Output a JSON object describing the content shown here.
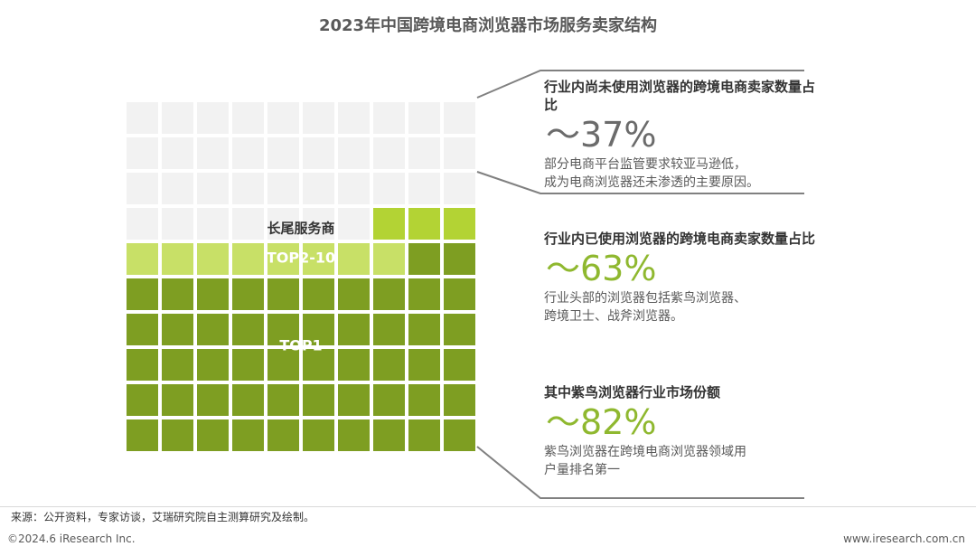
{
  "chart_data": {
    "type": "waffle",
    "title": "2023年中国跨境电商浏览器市场服务卖家结构",
    "grid": {
      "rows": 10,
      "cols": 10
    },
    "segments": [
      {
        "name": "未使用浏览器",
        "cells": 37,
        "color": "#f2f2f2"
      },
      {
        "name": "长尾服务商",
        "cells": 3,
        "color": "#b3d334"
      },
      {
        "name": "TOP2-10",
        "cells": 8,
        "color": "#c8e067"
      },
      {
        "name": "TOP1",
        "cells": 52,
        "color": "#7e9e22"
      }
    ],
    "labels": {
      "long_tail": "长尾服务商",
      "top2_10": "TOP2-10",
      "top1": "TOP1"
    },
    "annotations": [
      {
        "heading": "行业内尚未使用浏览器的跨境电商卖家数量占比",
        "value": "～37%",
        "desc_lines": [
          "部分电商平台监管要求较亚马逊低，",
          "成为电商浏览器还未渗透的主要原因。"
        ]
      },
      {
        "heading": "行业内已使用浏览器的跨境电商卖家数量占比",
        "value": "～63%",
        "desc_lines": [
          "行业头部的浏览器包括紫鸟浏览器、",
          "跨境卫士、战斧浏览器。"
        ]
      },
      {
        "heading": "其中紫鸟浏览器行业市场份额",
        "value": "～82%",
        "desc_lines": [
          "紫鸟浏览器在跨境电商浏览器领域用",
          "户量排名第一"
        ]
      }
    ]
  },
  "footer": {
    "source": "来源：公开资料，专家访谈，艾瑞研究院自主测算研究及绘制。",
    "copyright": "©2024.6 iResearch Inc.",
    "website": "www.iresearch.com.cn"
  }
}
